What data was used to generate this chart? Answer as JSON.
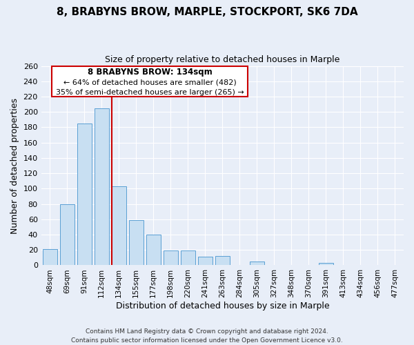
{
  "title": "8, BRABYNS BROW, MARPLE, STOCKPORT, SK6 7DA",
  "subtitle": "Size of property relative to detached houses in Marple",
  "xlabel": "Distribution of detached houses by size in Marple",
  "ylabel": "Number of detached properties",
  "bar_labels": [
    "48sqm",
    "69sqm",
    "91sqm",
    "112sqm",
    "134sqm",
    "155sqm",
    "177sqm",
    "198sqm",
    "220sqm",
    "241sqm",
    "263sqm",
    "284sqm",
    "305sqm",
    "327sqm",
    "348sqm",
    "370sqm",
    "391sqm",
    "413sqm",
    "434sqm",
    "456sqm",
    "477sqm"
  ],
  "bar_values": [
    21,
    80,
    185,
    205,
    103,
    59,
    40,
    19,
    19,
    11,
    12,
    0,
    5,
    0,
    0,
    0,
    3,
    0,
    0,
    0,
    0
  ],
  "bar_color": "#c8dff2",
  "bar_edge_color": "#5a9fd4",
  "highlight_bar_index": 4,
  "highlight_line_color": "#cc0000",
  "annotation_title": "8 BRABYNS BROW: 134sqm",
  "annotation_line1": "← 64% of detached houses are smaller (482)",
  "annotation_line2": "35% of semi-detached houses are larger (265) →",
  "annotation_box_color": "#ffffff",
  "annotation_box_edge": "#cc0000",
  "ylim": [
    0,
    260
  ],
  "yticks": [
    0,
    20,
    40,
    60,
    80,
    100,
    120,
    140,
    160,
    180,
    200,
    220,
    240,
    260
  ],
  "footer_line1": "Contains HM Land Registry data © Crown copyright and database right 2024.",
  "footer_line2": "Contains public sector information licensed under the Open Government Licence v3.0.",
  "bg_color": "#e8eef8",
  "plot_bg_color": "#e8eef8",
  "grid_color": "#ffffff",
  "title_fontsize": 11,
  "subtitle_fontsize": 9,
  "xlabel_fontsize": 9,
  "ylabel_fontsize": 9,
  "tick_fontsize": 8,
  "xtick_fontsize": 7.5,
  "footer_fontsize": 6.5
}
